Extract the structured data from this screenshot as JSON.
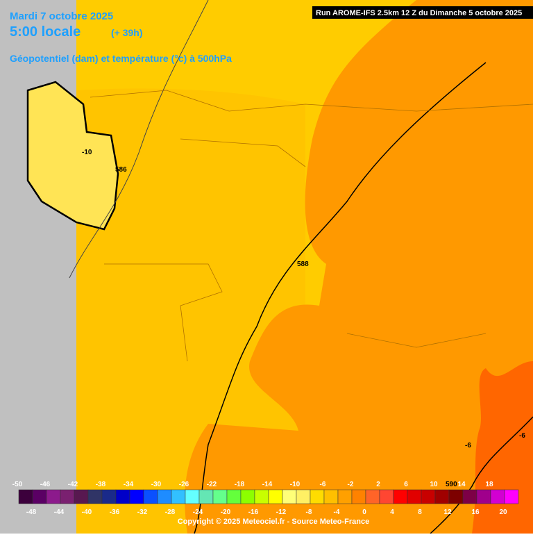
{
  "header": {
    "date": "Mardi 7 octobre 2025",
    "time": "5:00 locale",
    "lead": "(+ 39h)",
    "subtitle": "Géopotentiel (dam) et température (°c) à 500hPa",
    "run": "Run AROME-IFS 2.5km 12 Z du Dimanche 5 octobre 2025"
  },
  "contour_labels": [
    "-10",
    "586",
    "588",
    "-6",
    "-6",
    "590"
  ],
  "legend": {
    "labels_top": [
      "-50",
      "-46",
      "-42",
      "-38",
      "-34",
      "-30",
      "-26",
      "-22",
      "-18",
      "-14",
      "-10",
      "-6",
      "-2",
      "2",
      "6",
      "10",
      "14",
      "18"
    ],
    "labels_bottom": [
      "-48",
      "-44",
      "-40",
      "-36",
      "-32",
      "-28",
      "-24",
      "-20",
      "-16",
      "-12",
      "-8",
      "-4",
      "0",
      "4",
      "8",
      "12",
      "16",
      "20"
    ],
    "colors": [
      "#3c003c",
      "#5a0064",
      "#8c1a8c",
      "#7a2070",
      "#581850",
      "#303466",
      "#1a2a8a",
      "#0000c8",
      "#0000ff",
      "#0a50ff",
      "#1e8cff",
      "#32c0ff",
      "#64ffff",
      "#64e6b4",
      "#64ff8c",
      "#64ff3c",
      "#8cff00",
      "#c8ff00",
      "#ffff00",
      "#ffff78",
      "#fff064",
      "#ffdc00",
      "#ffc000",
      "#ffa000",
      "#ff8200",
      "#ff6428",
      "#ff4632",
      "#ff0000",
      "#e10000",
      "#c80000",
      "#a00000",
      "#7d0000",
      "#7d0046",
      "#a0008c",
      "#d200d2",
      "#ff00ff"
    ]
  },
  "copyright": "Copyright © 2025 Meteociel.fr - Source Meteo-France"
}
